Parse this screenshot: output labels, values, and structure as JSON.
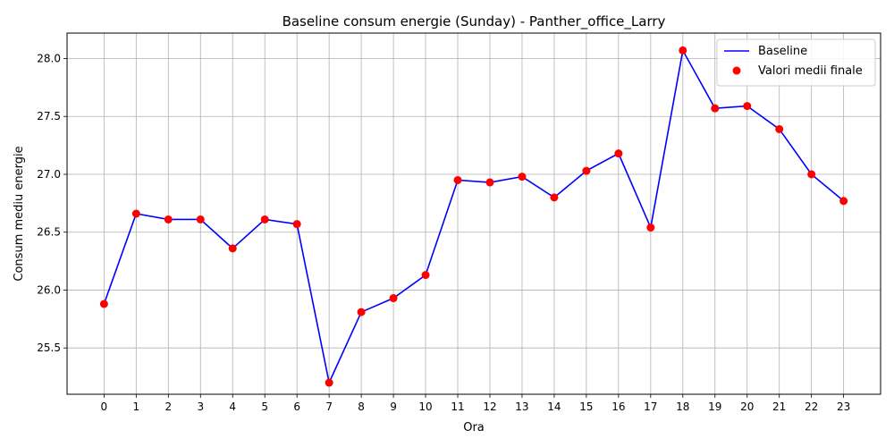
{
  "chart_data": {
    "type": "line",
    "title": "Baseline consum energie (Sunday) - Panther_office_Larry",
    "xlabel": "Ora",
    "ylabel": "Consum mediu energie",
    "x": [
      0,
      1,
      2,
      3,
      4,
      5,
      6,
      7,
      8,
      9,
      10,
      11,
      12,
      13,
      14,
      15,
      16,
      17,
      18,
      19,
      20,
      21,
      22,
      23
    ],
    "xticks": [
      "0",
      "1",
      "2",
      "3",
      "4",
      "5",
      "6",
      "7",
      "8",
      "9",
      "10",
      "11",
      "12",
      "13",
      "14",
      "15",
      "16",
      "17",
      "18",
      "19",
      "20",
      "21",
      "22",
      "23"
    ],
    "yticks": [
      25.5,
      26.0,
      26.5,
      27.0,
      27.5,
      28.0
    ],
    "ytick_labels": [
      "25.5",
      "26.0",
      "26.5",
      "27.0",
      "27.5",
      "28.0"
    ],
    "xlim": [
      -1.15,
      24.15
    ],
    "ylim": [
      25.1,
      28.22
    ],
    "grid": true,
    "legend_position": "top-right",
    "series": [
      {
        "name": "Baseline",
        "kind": "line",
        "color": "#0000ff",
        "values": [
          25.88,
          26.66,
          26.61,
          26.61,
          26.36,
          26.61,
          26.57,
          25.2,
          25.81,
          25.93,
          26.13,
          26.95,
          26.93,
          26.98,
          26.8,
          27.03,
          27.18,
          26.54,
          28.07,
          27.57,
          27.59,
          27.39,
          27.0,
          26.77
        ]
      },
      {
        "name": "Valori medii finale",
        "kind": "scatter",
        "color": "#ff0000",
        "values": [
          25.88,
          26.66,
          26.61,
          26.61,
          26.36,
          26.61,
          26.57,
          25.2,
          25.81,
          25.93,
          26.13,
          26.95,
          26.93,
          26.98,
          26.8,
          27.03,
          27.18,
          26.54,
          28.07,
          27.57,
          27.59,
          27.39,
          27.0,
          26.77
        ]
      }
    ]
  }
}
